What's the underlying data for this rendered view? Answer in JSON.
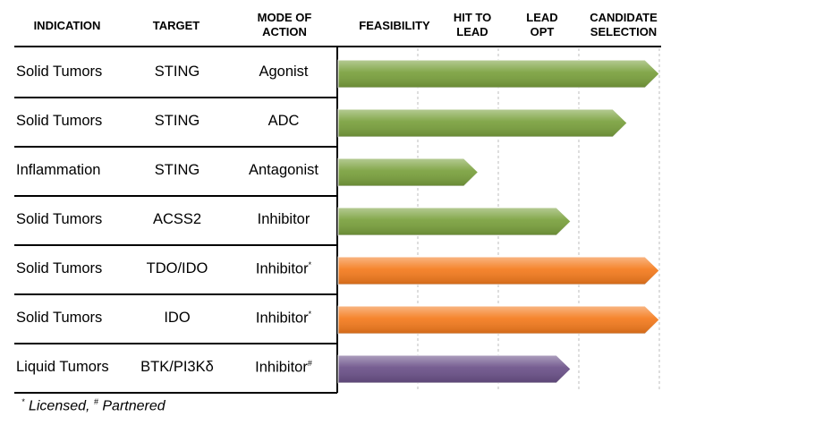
{
  "chart_data": {
    "type": "bar",
    "orientation": "horizontal",
    "columns": [
      {
        "key": "indication",
        "lines": [
          "INDICATION"
        ]
      },
      {
        "key": "target",
        "lines": [
          "TARGET"
        ]
      },
      {
        "key": "moa",
        "lines": [
          "MODE OF",
          "ACTION"
        ]
      }
    ],
    "stages": [
      {
        "key": "feasibility",
        "lines": [
          "FEASIBILITY"
        ]
      },
      {
        "key": "hit_to_lead",
        "lines": [
          "HIT TO",
          "LEAD"
        ]
      },
      {
        "key": "lead_opt",
        "lines": [
          "LEAD",
          "OPT"
        ]
      },
      {
        "key": "candidate_selection",
        "lines": [
          "CANDIDATE",
          "SELECTION"
        ]
      }
    ],
    "xlim": [
      0,
      4
    ],
    "colors": {
      "green": "#79a03c",
      "orange": "#f47a1c",
      "purple": "#6a5088"
    },
    "programs": [
      {
        "indication": "Solid Tumors",
        "target": "STING",
        "moa": "Agonist",
        "moa_mark": "",
        "progress": 4.0,
        "color": "green"
      },
      {
        "indication": "Solid Tumors",
        "target": "STING",
        "moa": "ADC",
        "moa_mark": "",
        "progress": 3.6,
        "color": "green"
      },
      {
        "indication": "Inflammation",
        "target": "STING",
        "moa": "Antagonist",
        "moa_mark": "",
        "progress": 1.75,
        "color": "green"
      },
      {
        "indication": "Solid Tumors",
        "target": "ACSS2",
        "moa": "Inhibitor",
        "moa_mark": "",
        "progress": 2.9,
        "color": "green"
      },
      {
        "indication": "Solid Tumors",
        "target": "TDO/IDO",
        "moa": "Inhibitor",
        "moa_mark": "*",
        "progress": 4.0,
        "color": "orange"
      },
      {
        "indication": "Solid Tumors",
        "target": "IDO",
        "moa": "Inhibitor",
        "moa_mark": "*",
        "progress": 4.0,
        "color": "orange"
      },
      {
        "indication": "Liquid Tumors",
        "target": "BTK/PI3Kδ",
        "moa": "Inhibitor",
        "moa_mark": "#",
        "progress": 2.9,
        "color": "purple"
      }
    ],
    "footnote": {
      "mark1": "*",
      "text1": " Licensed, ",
      "mark2": "#",
      "text2": " Partnered"
    }
  }
}
